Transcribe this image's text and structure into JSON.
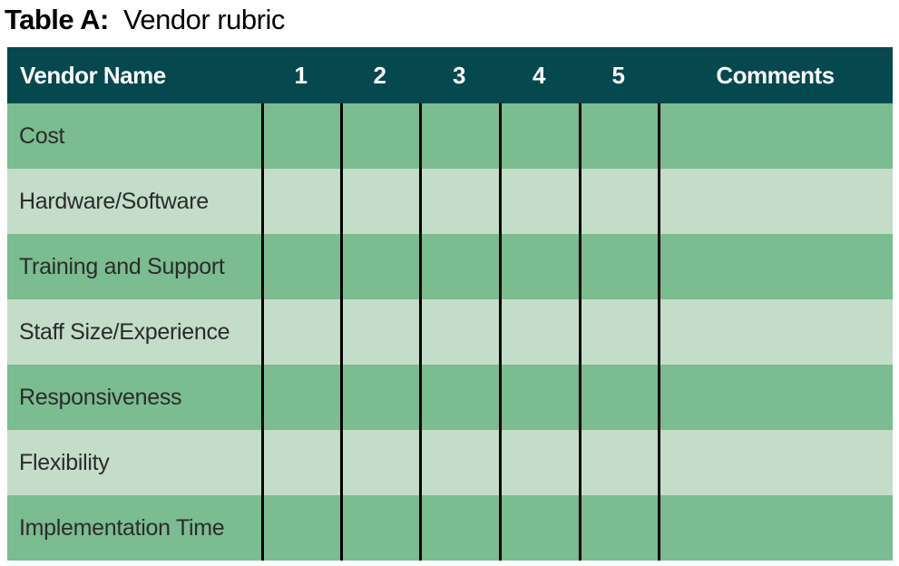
{
  "title": {
    "prefix": "Table A:",
    "rest": "Vendor rubric"
  },
  "table": {
    "header": [
      "Vendor Name",
      "1",
      "2",
      "3",
      "4",
      "5",
      "Comments"
    ],
    "rating_scale": [
      "1",
      "2",
      "3",
      "4",
      "5"
    ],
    "rows": [
      {
        "label": "Cost",
        "ratings": [
          "",
          "",
          "",
          "",
          ""
        ],
        "comment": ""
      },
      {
        "label": "Hardware/Software",
        "ratings": [
          "",
          "",
          "",
          "",
          ""
        ],
        "comment": ""
      },
      {
        "label": "Training and Support",
        "ratings": [
          "",
          "",
          "",
          "",
          ""
        ],
        "comment": ""
      },
      {
        "label": "Staff Size/Experience",
        "ratings": [
          "",
          "",
          "",
          "",
          ""
        ],
        "comment": ""
      },
      {
        "label": "Responsiveness",
        "ratings": [
          "",
          "",
          "",
          "",
          ""
        ],
        "comment": ""
      },
      {
        "label": "Flexibility",
        "ratings": [
          "",
          "",
          "",
          "",
          ""
        ],
        "comment": ""
      },
      {
        "label": "Implementation Time",
        "ratings": [
          "",
          "",
          "",
          "",
          ""
        ],
        "comment": ""
      }
    ]
  },
  "colors": {
    "header_bg": "#05484e",
    "header_text": "#ffffff",
    "row_dark": "#7bbc90",
    "row_light": "#c3ddc8",
    "grid_line": "#000000",
    "title_text": "#000000",
    "label_text": "#2b2b2b"
  }
}
